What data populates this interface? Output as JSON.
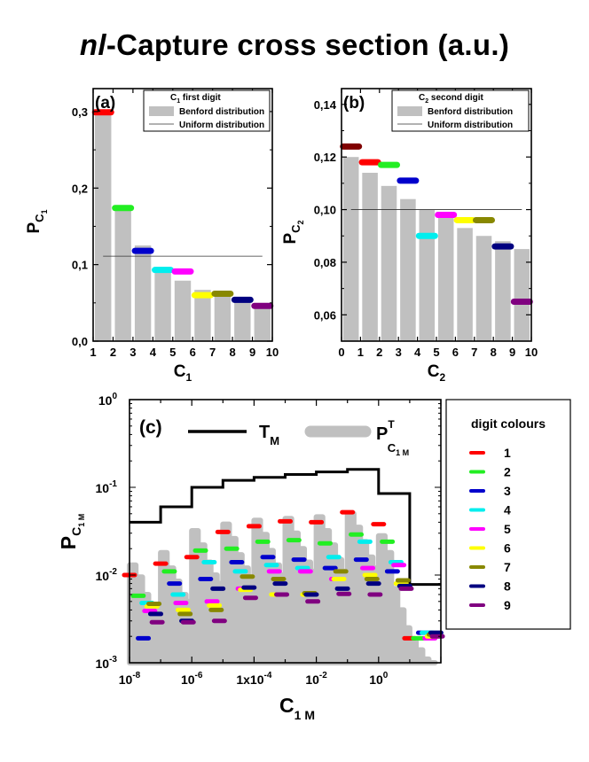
{
  "title": {
    "italic": "nl",
    "rest": "-Capture cross section (a.u.)"
  },
  "digit_colors": {
    "1": "#ff0000",
    "2": "#22ee22",
    "3": "#0000cc",
    "4": "#00eeee",
    "5": "#ff00ff",
    "6": "#ffff00",
    "7": "#888800",
    "8": "#000080",
    "9": "#800080"
  },
  "bar_color": "#c0c0c0",
  "chart_data": [
    {
      "id": "a",
      "type": "bar",
      "panel_label": "(a)",
      "ylabel_main": "P",
      "ylabel_sub": "C",
      "ylabel_subsub": "1",
      "xlabel_main": "C",
      "xlabel_sub": "1",
      "categories": [
        "1",
        "2",
        "3",
        "4",
        "5",
        "6",
        "7",
        "8",
        "9"
      ],
      "x_ticks": [
        "1",
        "2",
        "3",
        "4",
        "5",
        "6",
        "7",
        "8",
        "9",
        "10"
      ],
      "y_ticks": [
        "0,0",
        "0,1",
        "0,2",
        "0,3"
      ],
      "y_tick_values": [
        0,
        0.1,
        0.2,
        0.3
      ],
      "ylim": [
        0,
        0.33
      ],
      "legend": {
        "title_main": "C",
        "title_sub": "1",
        "title_rest": " first digit",
        "benford": "Benford distribution",
        "uniform": "Uniform distribution"
      },
      "benford": [
        0.301,
        0.176,
        0.125,
        0.097,
        0.079,
        0.067,
        0.058,
        0.051,
        0.046
      ],
      "uniform": 0.111,
      "observed": [
        0.299,
        0.174,
        0.118,
        0.093,
        0.091,
        0.06,
        0.062,
        0.054,
        0.046
      ]
    },
    {
      "id": "b",
      "type": "bar",
      "panel_label": "(b)",
      "ylabel_main": "P",
      "ylabel_sub": "C",
      "ylabel_subsub": "2",
      "xlabel_main": "C",
      "xlabel_sub": "2",
      "categories": [
        "0",
        "1",
        "2",
        "3",
        "4",
        "5",
        "6",
        "7",
        "8",
        "9"
      ],
      "x_ticks": [
        "0",
        "1",
        "2",
        "3",
        "4",
        "5",
        "6",
        "7",
        "8",
        "9",
        "10"
      ],
      "y_ticks": [
        "0,06",
        "0,08",
        "0,10",
        "0,12",
        "0,14"
      ],
      "y_tick_values": [
        0.06,
        0.08,
        0.1,
        0.12,
        0.14
      ],
      "ylim": [
        0.05,
        0.146
      ],
      "legend": {
        "title_main": "C",
        "title_sub": "2",
        "title_rest": " second digit",
        "benford": "Benford distribution",
        "uniform": "Uniform distribution"
      },
      "benford": [
        0.12,
        0.114,
        0.109,
        0.104,
        0.1,
        0.097,
        0.093,
        0.09,
        0.088,
        0.085
      ],
      "uniform": 0.1,
      "observed": [
        0.124,
        0.118,
        0.117,
        0.111,
        0.09,
        0.098,
        0.096,
        0.096,
        0.086,
        0.065
      ]
    },
    {
      "id": "c",
      "type": "line",
      "panel_label": "(c)",
      "ylabel_main": "P",
      "ylabel_sub": "C",
      "ylabel_subsub": "1 M",
      "xlabel_main": "C",
      "xlabel_sub": "1 M",
      "xscale": "log",
      "yscale": "log",
      "xlim": [
        1e-08,
        100.0
      ],
      "ylim": [
        0.001,
        1
      ],
      "x_ticks": [
        {
          "value": 1e-08,
          "base": "10",
          "exp": "-8"
        },
        {
          "value": 1e-06,
          "base": "10",
          "exp": "-6"
        },
        {
          "value": 0.0001,
          "base": "1x10",
          "exp": "-4"
        },
        {
          "value": 0.01,
          "base": "10",
          "exp": "-2"
        },
        {
          "value": 1.0,
          "base": "10",
          "exp": "0"
        }
      ],
      "y_ticks": [
        {
          "value": 0.001,
          "base": "10",
          "exp": "-3"
        },
        {
          "value": 0.01,
          "base": "10",
          "exp": "-2"
        },
        {
          "value": 0.1,
          "base": "10",
          "exp": "-1"
        },
        {
          "value": 1.0,
          "base": "10",
          "exp": "0"
        }
      ],
      "legend": {
        "tm_main": "T",
        "tm_sub": "M",
        "pt_main": "P",
        "pt_sup": "T",
        "pt_sub": "C",
        "pt_subsub": "1 M"
      },
      "T_M": [
        {
          "x": 1e-08,
          "y": 0.04
        },
        {
          "x": 1e-07,
          "y": 0.06
        },
        {
          "x": 1e-06,
          "y": 0.1
        },
        {
          "x": 1e-05,
          "y": 0.12
        },
        {
          "x": 0.0001,
          "y": 0.13
        },
        {
          "x": 0.001,
          "y": 0.14
        },
        {
          "x": 0.01,
          "y": 0.15
        },
        {
          "x": 0.1,
          "y": 0.16
        },
        {
          "x": 1.0,
          "y": 0.085
        },
        {
          "x": 10.0,
          "y": 0.0078
        },
        {
          "x": 100.0,
          "y": 0.0078
        }
      ],
      "P_T_envelope": [
        {
          "x": 1e-08,
          "y": 0.013
        },
        {
          "x": 1.6e-08,
          "y": 0.0095
        },
        {
          "x": 2.6e-08,
          "y": 0.006
        },
        {
          "x": 4.1e-08,
          "y": 0.0046
        },
        {
          "x": 6.5e-08,
          "y": 0.004
        },
        {
          "x": 1e-07,
          "y": 0.018
        },
        {
          "x": 1.6e-07,
          "y": 0.012
        },
        {
          "x": 2.6e-07,
          "y": 0.0085
        },
        {
          "x": 4.1e-07,
          "y": 0.006
        },
        {
          "x": 6.5e-07,
          "y": 0.005
        },
        {
          "x": 1e-06,
          "y": 0.032
        },
        {
          "x": 1.6e-06,
          "y": 0.022
        },
        {
          "x": 2.6e-06,
          "y": 0.014
        },
        {
          "x": 4.1e-06,
          "y": 0.01
        },
        {
          "x": 6.5e-06,
          "y": 0.008
        },
        {
          "x": 1e-05,
          "y": 0.038
        },
        {
          "x": 1.6e-05,
          "y": 0.026
        },
        {
          "x": 2.6e-05,
          "y": 0.017
        },
        {
          "x": 4.1e-05,
          "y": 0.012
        },
        {
          "x": 6.5e-05,
          "y": 0.009
        },
        {
          "x": 0.0001,
          "y": 0.042
        },
        {
          "x": 0.00016,
          "y": 0.029
        },
        {
          "x": 0.00026,
          "y": 0.019
        },
        {
          "x": 0.00041,
          "y": 0.013
        },
        {
          "x": 0.00065,
          "y": 0.01
        },
        {
          "x": 0.001,
          "y": 0.044
        },
        {
          "x": 0.0016,
          "y": 0.03
        },
        {
          "x": 0.0026,
          "y": 0.02
        },
        {
          "x": 0.0041,
          "y": 0.014
        },
        {
          "x": 0.0065,
          "y": 0.011
        },
        {
          "x": 0.01,
          "y": 0.046
        },
        {
          "x": 0.016,
          "y": 0.032
        },
        {
          "x": 0.026,
          "y": 0.022
        },
        {
          "x": 0.041,
          "y": 0.015
        },
        {
          "x": 0.065,
          "y": 0.011
        },
        {
          "x": 0.1,
          "y": 0.05
        },
        {
          "x": 0.16,
          "y": 0.035
        },
        {
          "x": 0.26,
          "y": 0.024
        },
        {
          "x": 0.41,
          "y": 0.016
        },
        {
          "x": 0.65,
          "y": 0.012
        },
        {
          "x": 1.0,
          "y": 0.028
        },
        {
          "x": 1.6,
          "y": 0.018
        },
        {
          "x": 2.6,
          "y": 0.007
        },
        {
          "x": 4.1,
          "y": 0.004
        },
        {
          "x": 6.5,
          "y": 0.0025
        },
        {
          "x": 10.0,
          "y": 0.0018
        },
        {
          "x": 16.0,
          "y": 0.0014
        },
        {
          "x": 26.0,
          "y": 0.0011
        },
        {
          "x": 41.0,
          "y": 0.001
        }
      ],
      "digit_markers": [
        {
          "x": 1e-08,
          "digit": [
            {
              "d": 1,
              "y": 0.01
            },
            {
              "d": 2,
              "y": 0.0058
            },
            {
              "d": 3,
              "y": 0.0019
            },
            {
              "d": 4,
              "y": 0.0048
            },
            {
              "d": 5,
              "y": 0.0039
            },
            {
              "d": 6,
              "y": 0.0044
            },
            {
              "d": 7,
              "y": 0.0047
            },
            {
              "d": 8,
              "y": 0.0036
            },
            {
              "d": 9,
              "y": 0.0029
            }
          ]
        },
        {
          "x": 1e-07,
          "digit": [
            {
              "d": 1,
              "y": 0.0135
            },
            {
              "d": 2,
              "y": 0.011
            },
            {
              "d": 3,
              "y": 0.008
            },
            {
              "d": 4,
              "y": 0.006
            },
            {
              "d": 5,
              "y": 0.0048
            },
            {
              "d": 6,
              "y": 0.004
            },
            {
              "d": 7,
              "y": 0.0036
            },
            {
              "d": 8,
              "y": 0.003
            },
            {
              "d": 9,
              "y": 0.0029
            }
          ]
        },
        {
          "x": 1e-06,
          "digit": [
            {
              "d": 1,
              "y": 0.016
            },
            {
              "d": 2,
              "y": 0.019
            },
            {
              "d": 3,
              "y": 0.009
            },
            {
              "d": 4,
              "y": 0.014
            },
            {
              "d": 5,
              "y": 0.005
            },
            {
              "d": 6,
              "y": 0.0045
            },
            {
              "d": 7,
              "y": 0.004
            },
            {
              "d": 8,
              "y": 0.007
            },
            {
              "d": 9,
              "y": 0.003
            }
          ]
        },
        {
          "x": 1e-05,
          "digit": [
            {
              "d": 1,
              "y": 0.031
            },
            {
              "d": 2,
              "y": 0.02
            },
            {
              "d": 3,
              "y": 0.014
            },
            {
              "d": 4,
              "y": 0.011
            },
            {
              "d": 5,
              "y": 0.007
            },
            {
              "d": 6,
              "y": 0.0068
            },
            {
              "d": 7,
              "y": 0.0096
            },
            {
              "d": 8,
              "y": 0.0072
            },
            {
              "d": 9,
              "y": 0.0055
            }
          ]
        },
        {
          "x": 0.0001,
          "digit": [
            {
              "d": 1,
              "y": 0.036
            },
            {
              "d": 2,
              "y": 0.024
            },
            {
              "d": 3,
              "y": 0.016
            },
            {
              "d": 4,
              "y": 0.013
            },
            {
              "d": 5,
              "y": 0.011
            },
            {
              "d": 6,
              "y": 0.006
            },
            {
              "d": 7,
              "y": 0.009
            },
            {
              "d": 8,
              "y": 0.008
            },
            {
              "d": 9,
              "y": 0.006
            }
          ]
        },
        {
          "x": 0.001,
          "digit": [
            {
              "d": 1,
              "y": 0.041
            },
            {
              "d": 2,
              "y": 0.025
            },
            {
              "d": 3,
              "y": 0.015
            },
            {
              "d": 4,
              "y": 0.012
            },
            {
              "d": 5,
              "y": 0.011
            },
            {
              "d": 6,
              "y": 0.006
            },
            {
              "d": 7,
              "y": 0.0062
            },
            {
              "d": 8,
              "y": 0.006
            },
            {
              "d": 9,
              "y": 0.005
            }
          ]
        },
        {
          "x": 0.01,
          "digit": [
            {
              "d": 1,
              "y": 0.04
            },
            {
              "d": 2,
              "y": 0.023
            },
            {
              "d": 3,
              "y": 0.012
            },
            {
              "d": 4,
              "y": 0.016
            },
            {
              "d": 5,
              "y": 0.009
            },
            {
              "d": 6,
              "y": 0.009
            },
            {
              "d": 7,
              "y": 0.011
            },
            {
              "d": 8,
              "y": 0.007
            },
            {
              "d": 9,
              "y": 0.0061
            }
          ]
        },
        {
          "x": 0.1,
          "digit": [
            {
              "d": 1,
              "y": 0.052
            },
            {
              "d": 2,
              "y": 0.029
            },
            {
              "d": 3,
              "y": 0.015
            },
            {
              "d": 4,
              "y": 0.024
            },
            {
              "d": 5,
              "y": 0.012
            },
            {
              "d": 6,
              "y": 0.01
            },
            {
              "d": 7,
              "y": 0.009
            },
            {
              "d": 8,
              "y": 0.008
            },
            {
              "d": 9,
              "y": 0.006
            }
          ]
        },
        {
          "x": 1.0,
          "digit": [
            {
              "d": 1,
              "y": 0.038
            },
            {
              "d": 2,
              "y": 0.024
            },
            {
              "d": 3,
              "y": 0.011
            },
            {
              "d": 4,
              "y": 0.014
            },
            {
              "d": 5,
              "y": 0.013
            },
            {
              "d": 6,
              "y": 0.008
            },
            {
              "d": 7,
              "y": 0.0087
            },
            {
              "d": 8,
              "y": 0.0075
            },
            {
              "d": 9,
              "y": 0.007
            }
          ]
        },
        {
          "x": 10.0,
          "digit": [
            {
              "d": 1,
              "y": 0.0019
            },
            {
              "d": 2,
              "y": 0.0019
            },
            {
              "d": 3,
              "y": 0.0022
            },
            {
              "d": 4,
              "y": 0.0022
            },
            {
              "d": 5,
              "y": 0.0019
            },
            {
              "d": 6,
              "y": 0.002
            },
            {
              "d": 7,
              "y": 0.0021
            },
            {
              "d": 8,
              "y": 0.0022
            },
            {
              "d": 9,
              "y": 0.002
            }
          ]
        }
      ]
    }
  ],
  "digit_legend": {
    "title": "digit colours",
    "items": [
      "1",
      "2",
      "3",
      "4",
      "5",
      "6",
      "7",
      "8",
      "9"
    ]
  }
}
